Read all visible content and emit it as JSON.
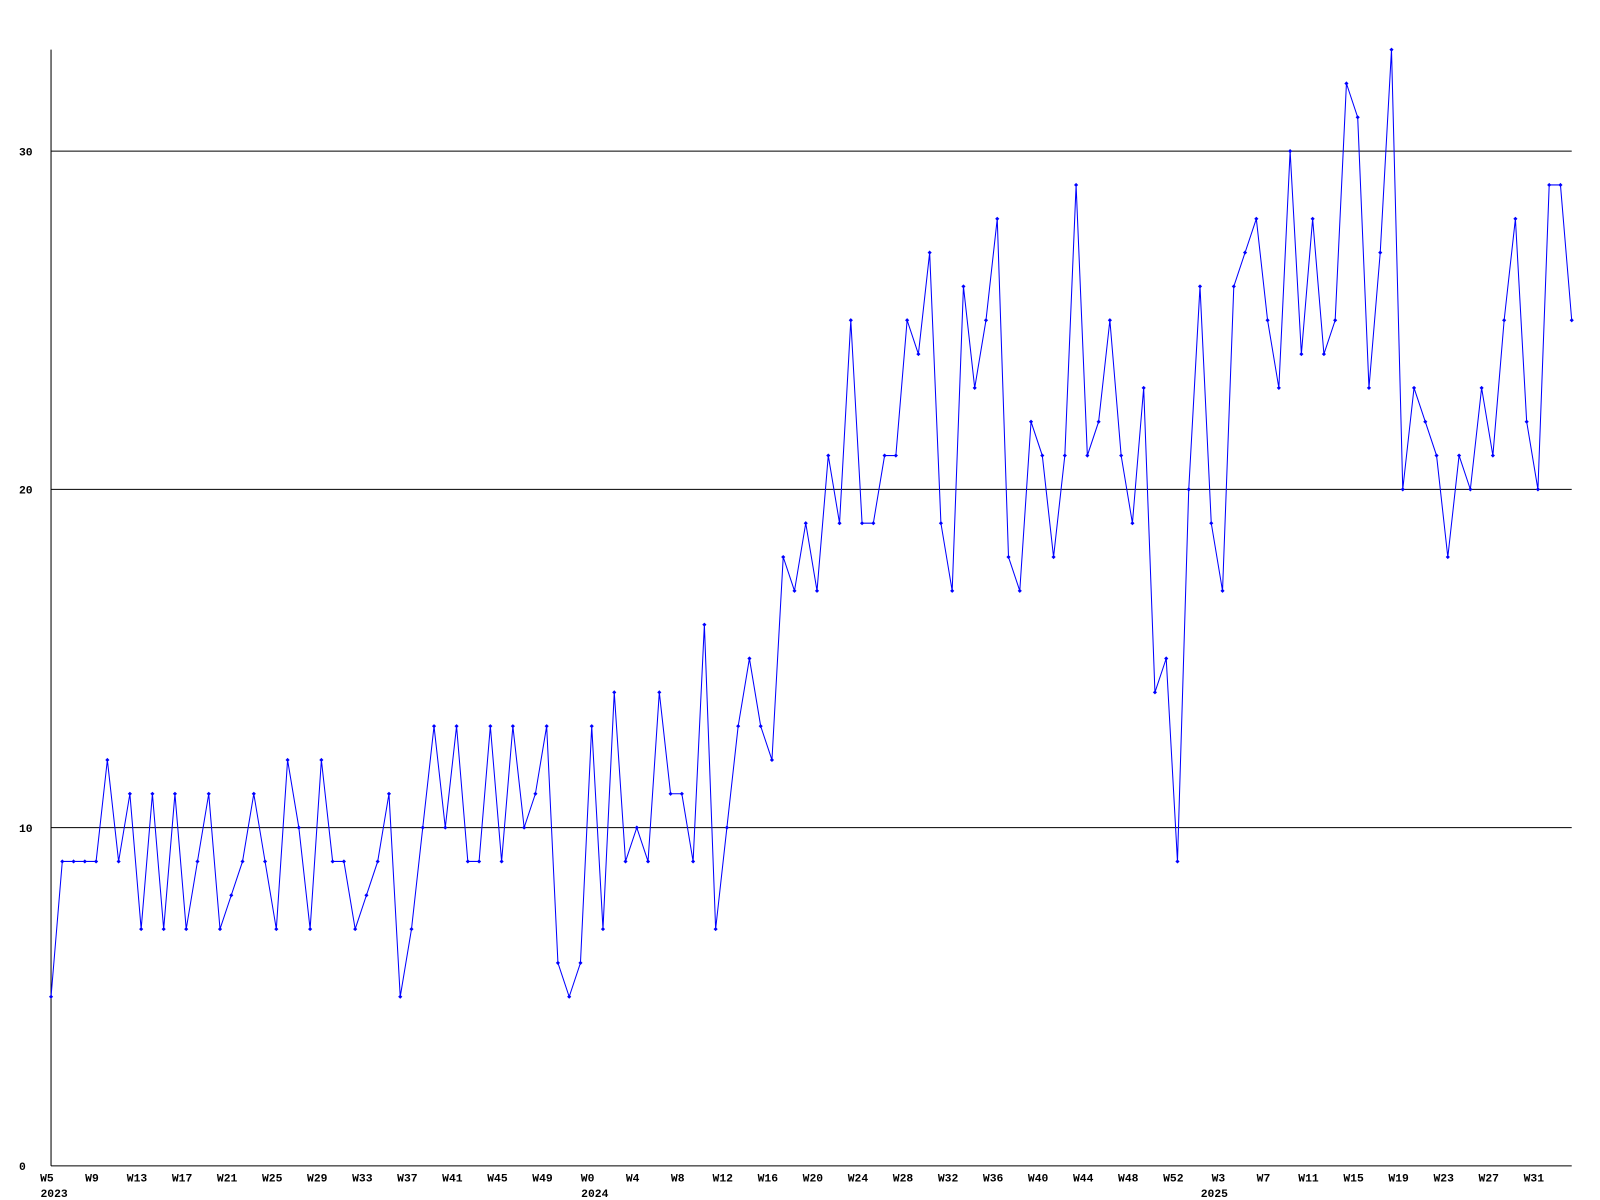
{
  "chart_data": {
    "type": "line",
    "categories": [
      "W5",
      null,
      null,
      null,
      "W9",
      null,
      null,
      null,
      "W13",
      null,
      null,
      null,
      "W17",
      null,
      null,
      null,
      "W21",
      null,
      null,
      null,
      "W25",
      null,
      null,
      null,
      "W29",
      null,
      null,
      null,
      "W33",
      null,
      null,
      null,
      "W37",
      null,
      null,
      null,
      "W41",
      null,
      null,
      null,
      "W45",
      null,
      null,
      null,
      "W49",
      null,
      null,
      null,
      "W0",
      null,
      null,
      null,
      "W4",
      null,
      null,
      null,
      "W8",
      null,
      null,
      null,
      "W12",
      null,
      null,
      null,
      "W16",
      null,
      null,
      null,
      "W20",
      null,
      null,
      null,
      "W24",
      null,
      null,
      null,
      "W28",
      null,
      null,
      null,
      "W32",
      null,
      null,
      null,
      "W36",
      null,
      null,
      null,
      "W40",
      null,
      null,
      null,
      "W44",
      null,
      null,
      null,
      "W48",
      null,
      null,
      null,
      "W52",
      null,
      null,
      null,
      "W3",
      null,
      null,
      null,
      "W7",
      null,
      null,
      null,
      "W11",
      null,
      null,
      null,
      "W15",
      null,
      null,
      null,
      "W19",
      null,
      null,
      null,
      "W23",
      null,
      null,
      null,
      "W27",
      null,
      null,
      null,
      "W31",
      null,
      null,
      null
    ],
    "years": [
      "2023",
      null,
      null,
      null,
      null,
      null,
      null,
      null,
      null,
      null,
      null,
      null,
      null,
      null,
      null,
      null,
      null,
      null,
      null,
      null,
      null,
      null,
      null,
      null,
      null,
      null,
      null,
      null,
      null,
      null,
      null,
      null,
      null,
      null,
      null,
      null,
      null,
      null,
      null,
      null,
      null,
      null,
      null,
      null,
      null,
      null,
      null,
      null,
      "2024",
      null,
      null,
      null,
      null,
      null,
      null,
      null,
      null,
      null,
      null,
      null,
      null,
      null,
      null,
      null,
      null,
      null,
      null,
      null,
      null,
      null,
      null,
      null,
      null,
      null,
      null,
      null,
      null,
      null,
      null,
      null,
      null,
      null,
      null,
      null,
      null,
      null,
      null,
      null,
      null,
      null,
      null,
      null,
      null,
      null,
      null,
      null,
      null,
      null,
      null,
      null,
      null,
      null,
      null,
      "2025",
      null,
      null,
      null,
      null,
      null,
      null,
      null,
      null,
      null,
      null,
      null,
      null,
      null,
      null,
      null,
      null,
      null,
      null,
      null,
      null,
      null,
      null,
      null,
      null,
      null,
      null,
      null,
      null,
      null,
      null,
      null,
      null,
      null,
      null
    ],
    "series": [
      {
        "color": "#0000ff",
        "values": [
          5,
          9,
          9,
          9,
          9,
          12,
          9,
          11,
          7,
          11,
          7,
          11,
          7,
          9,
          11,
          7,
          8,
          9,
          11,
          9,
          7,
          12,
          10,
          7,
          12,
          9,
          9,
          7,
          8,
          9,
          11,
          5,
          7,
          10,
          13,
          10,
          13,
          9,
          9,
          13,
          9,
          13,
          10,
          11,
          13,
          6,
          5,
          6,
          13,
          7,
          14,
          9,
          10,
          9,
          14,
          11,
          11,
          9,
          16,
          7,
          10,
          13,
          15,
          13,
          12,
          18,
          17,
          19,
          17,
          21,
          19,
          25,
          19,
          19,
          21,
          21,
          25,
          24,
          27,
          19,
          17,
          26,
          23,
          25,
          28,
          18,
          17,
          22,
          21,
          18,
          21,
          29,
          21,
          22,
          25,
          21,
          19,
          23,
          14,
          15,
          9,
          20,
          26,
          19,
          17,
          26,
          27,
          28,
          25,
          23,
          30,
          24,
          28,
          24,
          25,
          32,
          31,
          23,
          27,
          33,
          20,
          23,
          22,
          21,
          18,
          21,
          20,
          23,
          21,
          25,
          28,
          22,
          20,
          29,
          29,
          25
        ]
      }
    ],
    "ylim": [
      0,
      33
    ],
    "yticks": [
      0,
      10,
      20,
      30
    ],
    "grid": true
  }
}
